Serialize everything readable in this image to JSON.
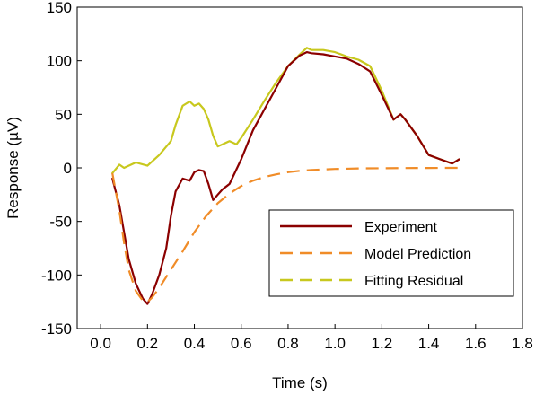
{
  "chart_data": {
    "type": "line",
    "xlabel": "Time (s)",
    "ylabel": "Response (µV)",
    "xlim": [
      -0.1,
      1.8
    ],
    "ylim": [
      -150,
      150
    ],
    "xticks": [
      "0.0",
      "0.2",
      "0.4",
      "0.6",
      "0.8",
      "1.0",
      "1.2",
      "1.4",
      "1.6",
      "1.8"
    ],
    "xtick_values": [
      0.0,
      0.2,
      0.4,
      0.6,
      0.8,
      1.0,
      1.2,
      1.4,
      1.6,
      1.8
    ],
    "yticks": [
      "-150",
      "-100",
      "-50",
      "0",
      "50",
      "100",
      "150"
    ],
    "ytick_values": [
      -150,
      -100,
      -50,
      0,
      50,
      100,
      150
    ],
    "grid": false,
    "legend_position": "bottom-right",
    "series": [
      {
        "name": "Experiment",
        "color": "#8b0000",
        "style": "solid",
        "x": [
          0.05,
          0.08,
          0.1,
          0.12,
          0.15,
          0.18,
          0.2,
          0.22,
          0.25,
          0.28,
          0.3,
          0.32,
          0.35,
          0.38,
          0.4,
          0.42,
          0.44,
          0.46,
          0.48,
          0.5,
          0.52,
          0.55,
          0.6,
          0.65,
          0.7,
          0.75,
          0.8,
          0.85,
          0.88,
          0.9,
          0.95,
          1.0,
          1.05,
          1.1,
          1.15,
          1.2,
          1.25,
          1.28,
          1.3,
          1.35,
          1.4,
          1.45,
          1.5,
          1.53
        ],
        "y": [
          -10,
          -35,
          -60,
          -85,
          -108,
          -122,
          -127,
          -118,
          -100,
          -75,
          -45,
          -22,
          -10,
          -12,
          -4,
          -2,
          -3,
          -15,
          -30,
          -25,
          -20,
          -15,
          8,
          35,
          55,
          75,
          95,
          105,
          108,
          107,
          106,
          104,
          102,
          97,
          90,
          68,
          45,
          50,
          45,
          30,
          12,
          8,
          4,
          8
        ]
      },
      {
        "name": "Model Prediction",
        "color": "#f08c28",
        "style": "dashed",
        "x": [
          0.05,
          0.08,
          0.1,
          0.12,
          0.15,
          0.18,
          0.2,
          0.22,
          0.25,
          0.3,
          0.35,
          0.4,
          0.45,
          0.5,
          0.55,
          0.6,
          0.65,
          0.7,
          0.75,
          0.8,
          0.85,
          0.9,
          1.0,
          1.1,
          1.2,
          1.3,
          1.4,
          1.5,
          1.53
        ],
        "y": [
          -5,
          -40,
          -70,
          -95,
          -115,
          -124,
          -125,
          -121,
          -112,
          -95,
          -78,
          -60,
          -45,
          -33,
          -24,
          -17,
          -12,
          -8.5,
          -6,
          -4,
          -2.8,
          -2,
          -1,
          -0.5,
          -0.3,
          -0.2,
          -0.1,
          0,
          0
        ]
      },
      {
        "name": "Fitting Residual",
        "color": "#c8c81e",
        "style": "solid",
        "x": [
          0.05,
          0.08,
          0.1,
          0.15,
          0.2,
          0.25,
          0.3,
          0.32,
          0.35,
          0.38,
          0.4,
          0.42,
          0.44,
          0.46,
          0.48,
          0.5,
          0.52,
          0.55,
          0.58,
          0.6,
          0.65,
          0.7,
          0.75,
          0.8,
          0.85,
          0.88,
          0.9,
          0.95,
          1.0,
          1.05,
          1.1,
          1.15,
          1.2,
          1.25,
          1.28,
          1.3,
          1.35,
          1.4,
          1.45,
          1.5,
          1.53
        ],
        "y": [
          -5,
          3,
          0,
          5,
          2,
          12,
          25,
          40,
          58,
          62,
          58,
          60,
          55,
          45,
          30,
          20,
          22,
          25,
          22,
          28,
          45,
          63,
          80,
          95,
          106,
          112,
          110,
          110,
          108,
          104,
          101,
          95,
          72,
          45,
          50,
          45,
          30,
          12,
          8,
          4,
          8
        ]
      }
    ]
  }
}
